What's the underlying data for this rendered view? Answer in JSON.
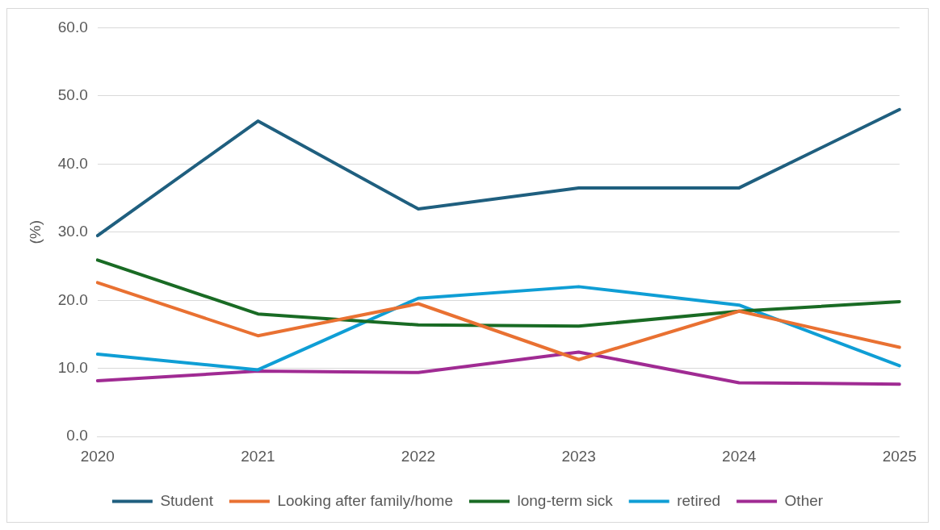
{
  "chart_data": {
    "type": "line",
    "ylabel": "(%)",
    "categories": [
      "2020",
      "2021",
      "2022",
      "2023",
      "2024",
      "2025"
    ],
    "series": [
      {
        "name": "Student",
        "color": "#1f5f7f",
        "values": [
          29.5,
          46.3,
          33.4,
          36.5,
          36.5,
          48.0
        ]
      },
      {
        "name": "Looking after family/home",
        "color": "#e97132",
        "values": [
          22.6,
          14.8,
          19.5,
          11.3,
          18.4,
          13.1
        ]
      },
      {
        "name": "long-term sick",
        "color": "#196b24",
        "values": [
          25.9,
          18.0,
          16.4,
          16.2,
          18.4,
          19.8
        ]
      },
      {
        "name": "retired",
        "color": "#0f9ed5",
        "values": [
          12.1,
          9.8,
          20.3,
          22.0,
          19.3,
          10.4
        ]
      },
      {
        "name": "Other",
        "color": "#a02b93",
        "values": [
          8.2,
          9.6,
          9.4,
          12.4,
          7.9,
          7.7
        ]
      }
    ],
    "ylim": [
      0,
      60
    ],
    "yticks": [
      {
        "value": 0,
        "label": "0.0"
      },
      {
        "value": 10,
        "label": "10.0"
      },
      {
        "value": 20,
        "label": "20.0"
      },
      {
        "value": 30,
        "label": "30.0"
      },
      {
        "value": 40,
        "label": "40.0"
      },
      {
        "value": 50,
        "label": "50.0"
      },
      {
        "value": 60,
        "label": "60.0"
      }
    ],
    "grid": "y",
    "legend": "bottom",
    "marker": "none",
    "line_style": "solid"
  }
}
